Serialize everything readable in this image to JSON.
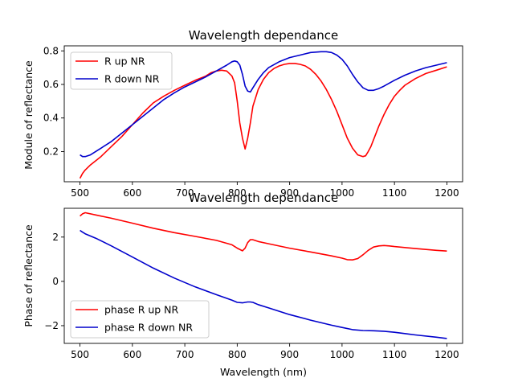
{
  "chart_data": [
    {
      "type": "line",
      "title": "Wavelength dependance",
      "xlabel": "",
      "ylabel": "Module of reflectance",
      "xlim": [
        470,
        1230
      ],
      "ylim": [
        0.02,
        0.83
      ],
      "xticks": [
        "500",
        "600",
        "700",
        "800",
        "900",
        "1000",
        "1100",
        "1200"
      ],
      "yticks": [
        "0.2",
        "0.4",
        "0.6",
        "0.8"
      ],
      "grid": false,
      "legend_position": "top-left",
      "series": [
        {
          "name": "R up NR",
          "color": "#ff0000",
          "x": [
            500,
            505,
            510,
            520,
            540,
            560,
            580,
            600,
            620,
            640,
            660,
            680,
            700,
            720,
            740,
            750,
            760,
            770,
            780,
            790,
            795,
            800,
            805,
            810,
            815,
            820,
            825,
            830,
            840,
            850,
            860,
            870,
            880,
            890,
            900,
            910,
            920,
            930,
            940,
            950,
            960,
            970,
            980,
            990,
            1000,
            1010,
            1020,
            1030,
            1040,
            1045,
            1050,
            1055,
            1060,
            1070,
            1080,
            1090,
            1100,
            1110,
            1120,
            1140,
            1160,
            1180,
            1200
          ],
          "y": [
            0.04,
            0.07,
            0.09,
            0.12,
            0.17,
            0.23,
            0.29,
            0.36,
            0.43,
            0.49,
            0.53,
            0.565,
            0.595,
            0.625,
            0.65,
            0.67,
            0.68,
            0.685,
            0.68,
            0.65,
            0.61,
            0.5,
            0.37,
            0.28,
            0.215,
            0.28,
            0.37,
            0.47,
            0.57,
            0.63,
            0.67,
            0.695,
            0.71,
            0.72,
            0.725,
            0.725,
            0.72,
            0.71,
            0.69,
            0.66,
            0.62,
            0.57,
            0.51,
            0.44,
            0.36,
            0.28,
            0.22,
            0.18,
            0.17,
            0.175,
            0.2,
            0.23,
            0.27,
            0.35,
            0.42,
            0.48,
            0.53,
            0.565,
            0.595,
            0.635,
            0.665,
            0.685,
            0.705
          ]
        },
        {
          "name": "R down NR",
          "color": "#0000cc",
          "x": [
            500,
            505,
            510,
            520,
            540,
            560,
            580,
            600,
            620,
            640,
            660,
            680,
            700,
            720,
            740,
            760,
            780,
            790,
            795,
            800,
            805,
            810,
            815,
            820,
            825,
            830,
            840,
            850,
            860,
            880,
            900,
            920,
            940,
            960,
            970,
            980,
            990,
            1000,
            1010,
            1020,
            1030,
            1040,
            1050,
            1060,
            1070,
            1080,
            1100,
            1120,
            1140,
            1160,
            1180,
            1200
          ],
          "y": [
            0.18,
            0.17,
            0.17,
            0.18,
            0.22,
            0.26,
            0.31,
            0.36,
            0.41,
            0.46,
            0.51,
            0.55,
            0.585,
            0.615,
            0.645,
            0.68,
            0.715,
            0.735,
            0.74,
            0.735,
            0.715,
            0.66,
            0.59,
            0.56,
            0.555,
            0.58,
            0.63,
            0.67,
            0.7,
            0.735,
            0.76,
            0.775,
            0.79,
            0.795,
            0.795,
            0.79,
            0.775,
            0.75,
            0.71,
            0.66,
            0.615,
            0.58,
            0.565,
            0.565,
            0.575,
            0.59,
            0.625,
            0.655,
            0.68,
            0.7,
            0.715,
            0.73
          ]
        }
      ]
    },
    {
      "type": "line",
      "title": "Wavelength dependance",
      "xlabel": "Wavelength (nm)",
      "ylabel": "Phase of reflectance",
      "xlim": [
        470,
        1230
      ],
      "ylim": [
        -2.8,
        3.3
      ],
      "xticks": [
        "500",
        "600",
        "700",
        "800",
        "900",
        "1000",
        "1100",
        "1200"
      ],
      "yticks": [
        "−2",
        "0",
        "2"
      ],
      "grid": false,
      "legend_position": "bottom-left",
      "series": [
        {
          "name": "phase R up NR",
          "color": "#ff0000",
          "x": [
            500,
            505,
            510,
            530,
            560,
            600,
            640,
            680,
            720,
            760,
            790,
            800,
            810,
            815,
            820,
            825,
            830,
            840,
            860,
            900,
            940,
            980,
            1000,
            1010,
            1020,
            1030,
            1040,
            1050,
            1060,
            1070,
            1080,
            1090,
            1100,
            1140,
            1180,
            1200
          ],
          "y": [
            2.95,
            3.05,
            3.1,
            3.0,
            2.85,
            2.63,
            2.4,
            2.2,
            2.03,
            1.85,
            1.65,
            1.5,
            1.38,
            1.5,
            1.75,
            1.88,
            1.88,
            1.8,
            1.7,
            1.5,
            1.33,
            1.15,
            1.05,
            0.98,
            0.97,
            1.03,
            1.2,
            1.4,
            1.55,
            1.6,
            1.62,
            1.6,
            1.57,
            1.48,
            1.4,
            1.37
          ]
        },
        {
          "name": "phase R down NR",
          "color": "#0000cc",
          "x": [
            500,
            505,
            510,
            530,
            560,
            600,
            640,
            680,
            720,
            760,
            790,
            800,
            810,
            815,
            820,
            825,
            830,
            840,
            860,
            900,
            940,
            980,
            1000,
            1020,
            1040,
            1060,
            1080,
            1100,
            1140,
            1180,
            1200
          ],
          "y": [
            2.3,
            2.22,
            2.15,
            1.95,
            1.6,
            1.1,
            0.6,
            0.15,
            -0.25,
            -0.6,
            -0.85,
            -0.95,
            -0.97,
            -0.95,
            -0.93,
            -0.93,
            -0.95,
            -1.05,
            -1.2,
            -1.5,
            -1.75,
            -1.98,
            -2.08,
            -2.18,
            -2.22,
            -2.23,
            -2.25,
            -2.3,
            -2.42,
            -2.52,
            -2.58
          ]
        }
      ]
    }
  ]
}
